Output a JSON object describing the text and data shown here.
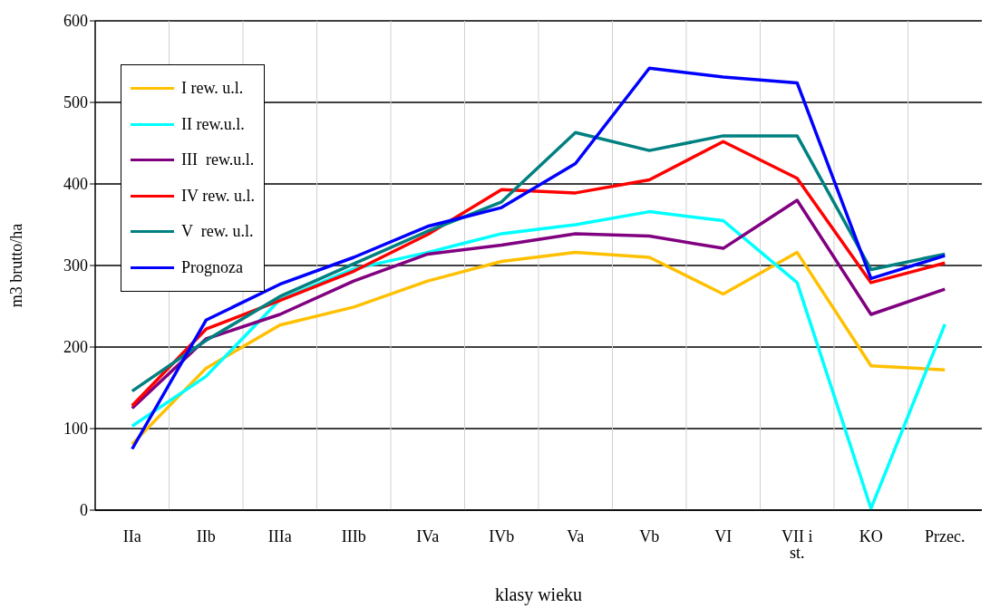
{
  "chart_data": {
    "type": "line",
    "xlabel": "klasy wieku",
    "ylabel": "m3 brutto/ha",
    "categories": [
      "IIa",
      "IIb",
      "IIIa",
      "IIIb",
      "IVa",
      "IVb",
      "Va",
      "Vb",
      "VI",
      "VII i st.",
      "KO",
      "Przec."
    ],
    "ylim": [
      0,
      600
    ],
    "yticks": [
      0,
      100,
      200,
      300,
      400,
      500,
      600
    ],
    "grid": true,
    "legend": "top left",
    "marker": "none",
    "line_style": "solid",
    "series": [
      {
        "name": "I rew. u.l.",
        "color": "#ffc000",
        "values": [
          81,
          174,
          227,
          249,
          281,
          305,
          316,
          310,
          265,
          316,
          177,
          172
        ]
      },
      {
        "name": "II rew.u.l.",
        "color": "#00ffff",
        "values": [
          103,
          164,
          258,
          296,
          316,
          339,
          350,
          366,
          355,
          279,
          2,
          228
        ]
      },
      {
        "name": "III  rew.u.l.",
        "color": "#800080",
        "values": [
          125,
          210,
          240,
          281,
          314,
          325,
          339,
          336,
          321,
          380,
          240,
          271
        ]
      },
      {
        "name": "IV rew. u.l.",
        "color": "#ff0000",
        "values": [
          128,
          222,
          257,
          293,
          338,
          393,
          389,
          405,
          452,
          407,
          279,
          303
        ]
      },
      {
        "name": "V  rew. u.l.",
        "color": "#008080",
        "values": [
          146,
          208,
          262,
          302,
          342,
          378,
          463,
          441,
          459,
          459,
          295,
          314
        ]
      },
      {
        "name": "Prognoza",
        "color": "#0000ff",
        "values": [
          75,
          233,
          277,
          310,
          348,
          371,
          425,
          542,
          531,
          524,
          284,
          312
        ]
      }
    ]
  }
}
